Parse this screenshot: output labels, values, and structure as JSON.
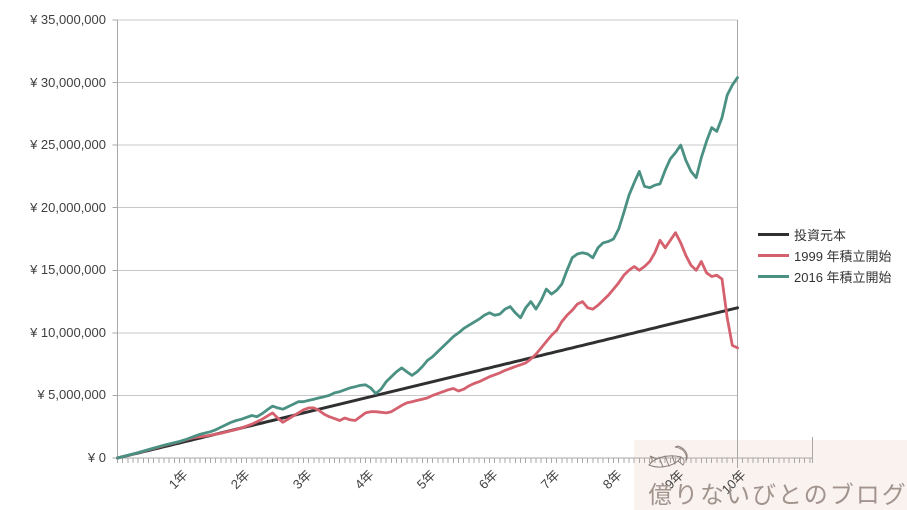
{
  "watermark": {
    "text": "億りないびとのブログ",
    "bg_color": "#f9f2ef",
    "text_color": "#a2948d",
    "logo_color": "#8d7f78"
  },
  "legend": {
    "items": [
      {
        "label": "投資元本",
        "color": "#303030"
      },
      {
        "label": "1999 年積立開始",
        "color": "#d5606e"
      },
      {
        "label": "2016 年積立開始",
        "color": "#4a9183"
      }
    ]
  },
  "axis_colors": {
    "grid": "#c8c8c8",
    "axis": "#a8a8a8",
    "label": "#404040"
  },
  "chart_data": {
    "type": "line",
    "title": "",
    "xlabel": "",
    "ylabel": "",
    "x_unit": "months since start (0-120, monthly ticks)",
    "y_unit": "JPY (values stored in millions of yen)",
    "ylim": [
      0,
      35000000
    ],
    "y_tick_interval": 5000000,
    "grid": true,
    "legend_position": "right",
    "y_tick_labels": [
      "¥ 35,000,000",
      "¥ 30,000,000",
      "¥ 25,000,000",
      "¥ 20,000,000",
      "¥ 15,000,000",
      "¥ 10,000,000",
      "¥ 5,000,000",
      "¥ 0"
    ],
    "x_tick_labels": [
      "1年",
      "2年",
      "3年",
      "4年",
      "5年",
      "6年",
      "7年",
      "8年",
      "9年",
      "10年"
    ],
    "series": [
      {
        "name": "投資元本",
        "color": "#303030",
        "width": 3,
        "values_million": [
          0,
          0.1,
          0.2,
          0.3,
          0.4,
          0.5,
          0.6,
          0.7,
          0.8,
          0.9,
          1.0,
          1.1,
          1.2,
          1.3,
          1.4,
          1.5,
          1.6,
          1.7,
          1.8,
          1.9,
          2.0,
          2.1,
          2.2,
          2.3,
          2.4,
          2.5,
          2.6,
          2.7,
          2.8,
          2.9,
          3.0,
          3.1,
          3.2,
          3.3,
          3.4,
          3.5,
          3.6,
          3.7,
          3.8,
          3.9,
          4.0,
          4.1,
          4.2,
          4.3,
          4.4,
          4.5,
          4.6,
          4.7,
          4.8,
          4.9,
          5.0,
          5.1,
          5.2,
          5.3,
          5.4,
          5.5,
          5.6,
          5.7,
          5.8,
          5.9,
          6.0,
          6.1,
          6.2,
          6.3,
          6.4,
          6.5,
          6.6,
          6.7,
          6.8,
          6.9,
          7.0,
          7.1,
          7.2,
          7.3,
          7.4,
          7.5,
          7.6,
          7.7,
          7.8,
          7.9,
          8.0,
          8.1,
          8.2,
          8.3,
          8.4,
          8.5,
          8.6,
          8.7,
          8.8,
          8.9,
          9.0,
          9.1,
          9.2,
          9.3,
          9.4,
          9.5,
          9.6,
          9.7,
          9.8,
          9.9,
          10.0,
          10.1,
          10.2,
          10.3,
          10.4,
          10.5,
          10.6,
          10.7,
          10.8,
          10.9,
          11.0,
          11.1,
          11.2,
          11.3,
          11.4,
          11.5,
          11.6,
          11.7,
          11.8,
          11.9,
          12.0
        ]
      },
      {
        "name": "1999 年積立開始",
        "color": "#d5606e",
        "width": 2.8,
        "values_million": [
          0,
          0.1,
          0.2,
          0.31,
          0.42,
          0.53,
          0.65,
          0.77,
          0.88,
          1.0,
          1.1,
          1.2,
          1.3,
          1.42,
          1.55,
          1.65,
          1.7,
          1.75,
          1.82,
          1.9,
          1.98,
          2.08,
          2.18,
          2.28,
          2.4,
          2.55,
          2.7,
          2.9,
          3.1,
          3.35,
          3.6,
          3.2,
          2.85,
          3.1,
          3.35,
          3.6,
          3.85,
          4.0,
          4.0,
          3.8,
          3.5,
          3.3,
          3.15,
          3.0,
          3.2,
          3.05,
          3.0,
          3.3,
          3.6,
          3.7,
          3.7,
          3.65,
          3.6,
          3.7,
          3.95,
          4.2,
          4.4,
          4.5,
          4.6,
          4.7,
          4.8,
          5.0,
          5.15,
          5.3,
          5.45,
          5.55,
          5.35,
          5.5,
          5.75,
          5.95,
          6.1,
          6.3,
          6.5,
          6.65,
          6.8,
          7.0,
          7.15,
          7.3,
          7.45,
          7.6,
          7.9,
          8.3,
          8.8,
          9.3,
          9.8,
          10.2,
          10.9,
          11.4,
          11.8,
          12.3,
          12.5,
          12.0,
          11.9,
          12.2,
          12.6,
          13.0,
          13.5,
          14.0,
          14.6,
          15.0,
          15.3,
          15.0,
          15.3,
          15.7,
          16.4,
          17.4,
          16.8,
          17.4,
          18.0,
          17.2,
          16.2,
          15.4,
          15.0,
          15.7,
          14.8,
          14.5,
          14.6,
          14.3,
          11.2,
          9.0,
          8.8
        ]
      },
      {
        "name": "2016 年積立開始",
        "color": "#4a9183",
        "width": 2.8,
        "values_million": [
          0,
          0.1,
          0.21,
          0.32,
          0.43,
          0.55,
          0.67,
          0.79,
          0.9,
          1.02,
          1.12,
          1.22,
          1.32,
          1.45,
          1.6,
          1.75,
          1.9,
          2.0,
          2.1,
          2.25,
          2.45,
          2.65,
          2.85,
          3.0,
          3.1,
          3.25,
          3.4,
          3.3,
          3.55,
          3.85,
          4.15,
          4.0,
          3.9,
          4.1,
          4.3,
          4.5,
          4.5,
          4.6,
          4.7,
          4.8,
          4.9,
          5.0,
          5.2,
          5.3,
          5.45,
          5.6,
          5.7,
          5.8,
          5.85,
          5.6,
          5.15,
          5.5,
          6.1,
          6.5,
          6.9,
          7.2,
          6.9,
          6.6,
          6.9,
          7.3,
          7.8,
          8.1,
          8.5,
          8.9,
          9.3,
          9.7,
          10.0,
          10.35,
          10.6,
          10.85,
          11.1,
          11.4,
          11.6,
          11.4,
          11.5,
          11.9,
          12.1,
          11.6,
          11.2,
          12.0,
          12.5,
          11.9,
          12.6,
          13.5,
          13.1,
          13.4,
          13.9,
          15.0,
          16.0,
          16.3,
          16.4,
          16.3,
          16.0,
          16.8,
          17.2,
          17.3,
          17.5,
          18.3,
          19.6,
          21.0,
          22.0,
          22.9,
          21.7,
          21.6,
          21.8,
          21.9,
          23.0,
          23.9,
          24.4,
          25.0,
          23.8,
          22.9,
          22.4,
          24.0,
          25.3,
          26.4,
          26.1,
          27.2,
          29.0,
          29.8,
          30.4
        ]
      }
    ]
  }
}
